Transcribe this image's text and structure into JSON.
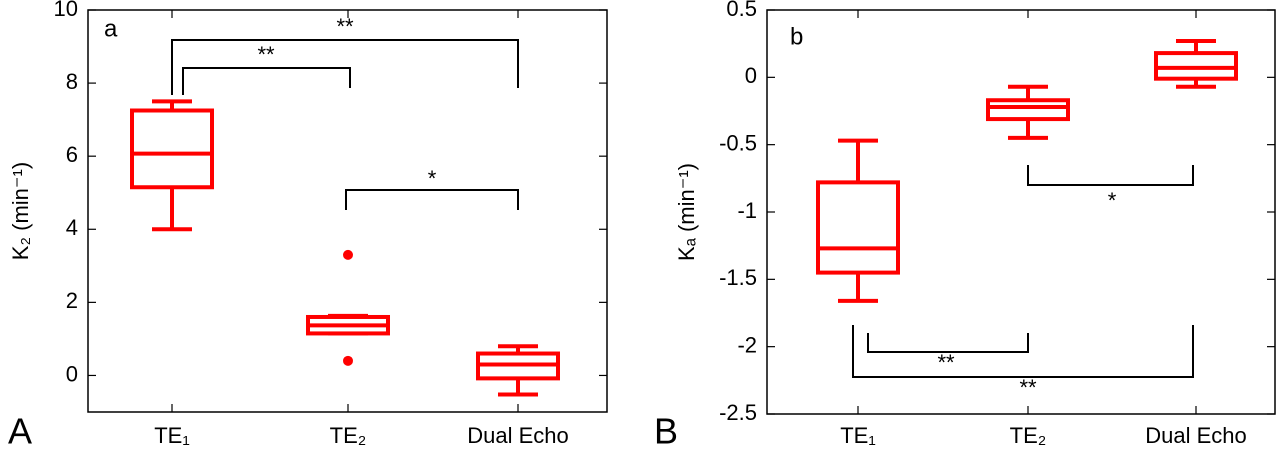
{
  "chart_data": [
    {
      "type": "box",
      "panel": "A",
      "label": "a",
      "ylabel": "K₂ (min⁻¹)",
      "categories": [
        "TE₁",
        "TE₂",
        "Dual Echo"
      ],
      "color": "#ff0000",
      "ylim": [
        -1,
        10
      ],
      "yticks": [
        0,
        2,
        4,
        6,
        8,
        10
      ],
      "boxes": [
        {
          "whisker_low": 4.0,
          "q1": 5.15,
          "median": 6.07,
          "q3": 7.25,
          "whisker_high": 7.5
        },
        {
          "whisker_low": 1.15,
          "q1": 1.15,
          "median": 1.37,
          "q3": 1.6,
          "whisker_high": 1.63,
          "outliers": [
            3.3,
            0.4
          ]
        },
        {
          "whisker_low": -0.52,
          "q1": -0.08,
          "median": 0.3,
          "q3": 0.6,
          "whisker_high": 0.8
        }
      ],
      "significance": [
        "**",
        "**",
        "*"
      ]
    },
    {
      "type": "box",
      "panel": "B",
      "label": "b",
      "ylabel": "Kₐ (min⁻¹)",
      "categories": [
        "TE₁",
        "TE₂",
        "Dual Echo"
      ],
      "color": "#ff0000",
      "ylim": [
        -2.5,
        0.5
      ],
      "yticks": [
        0.5,
        0,
        -0.5,
        -1,
        -1.5,
        -2,
        -2.5
      ],
      "boxes": [
        {
          "whisker_low": -1.66,
          "q1": -1.45,
          "median": -1.27,
          "q3": -0.78,
          "whisker_high": -0.47
        },
        {
          "whisker_low": -0.45,
          "q1": -0.31,
          "median": -0.22,
          "q3": -0.17,
          "whisker_high": -0.07
        },
        {
          "whisker_low": -0.07,
          "q1": -0.01,
          "median": 0.07,
          "q3": 0.18,
          "whisker_high": 0.27
        }
      ],
      "significance": [
        "*",
        "**",
        "**"
      ]
    }
  ]
}
